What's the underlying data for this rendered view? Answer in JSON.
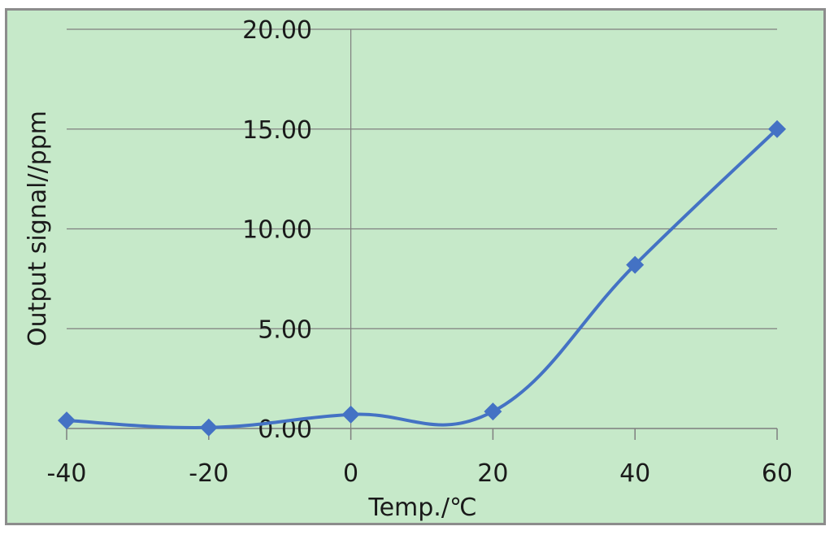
{
  "chart_data": {
    "type": "line",
    "xlabel": "Temp./℃",
    "ylabel": "Output signal//ppm",
    "x": [
      -40,
      -20,
      0,
      20,
      40,
      60
    ],
    "series": [
      {
        "values": [
          0.4,
          0.05,
          0.7,
          0.85,
          8.2,
          15.0
        ]
      }
    ],
    "xlim": [
      -40,
      60
    ],
    "ylim": [
      0,
      20
    ],
    "x_ticks": [
      "-40",
      "-20",
      "0",
      "20",
      "40",
      "60"
    ],
    "y_ticks": [
      "0.00",
      "5.00",
      "10.00",
      "15.00",
      "20.00"
    ],
    "grid": "horizontal",
    "smooth": true,
    "marker": "diamond",
    "colors": {
      "series": "#4472c4",
      "background": "#c6e9c9",
      "grid": "#7f7f7f"
    }
  }
}
